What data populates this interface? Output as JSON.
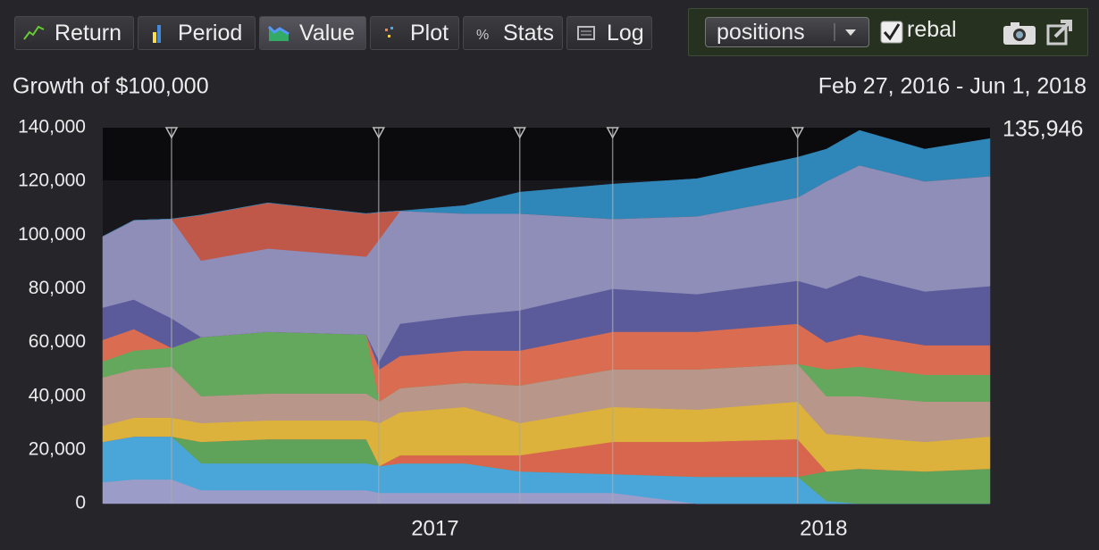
{
  "toolbar": {
    "buttons": [
      "Return",
      "Period",
      "Value",
      "Plot",
      "Stats",
      "Log"
    ],
    "active": 2
  },
  "controls": {
    "select": "positions",
    "checkbox_label": "rebal",
    "checked": true
  },
  "chart_data": {
    "type": "stacked-area",
    "title": "Growth of $100,000",
    "subtitle": "Feb 27, 2016 - Jun 1, 2018",
    "end_label": "135,946",
    "x": [
      2016.145,
      2016.225,
      2016.322,
      2016.398,
      2016.57,
      2016.823,
      2016.857,
      2016.91,
      2017.076,
      2017.218,
      2017.457,
      2017.674,
      2017.933,
      2018.007,
      2018.092,
      2018.26,
      2018.428
    ],
    "xlim": [
      2016.145,
      2018.428
    ],
    "xticks": [
      2017,
      2018
    ],
    "ylim": [
      0,
      140000
    ],
    "yticks": [
      0,
      {
        "value": 20000,
        "label": "20,000"
      },
      {
        "value": 40000,
        "label": "40,000"
      },
      {
        "value": 60000,
        "label": "60,000"
      },
      {
        "value": 80000,
        "label": "80,000"
      },
      {
        "value": 100000,
        "label": "100,000"
      },
      {
        "value": 120000,
        "label": "120,000"
      },
      {
        "value": 140000,
        "label": "140,000"
      }
    ],
    "grid": false,
    "rebalance_x": [
      2016.322,
      2016.855,
      2017.218,
      2017.457,
      2017.933
    ],
    "series": [
      {
        "color": "#9c9cc8",
        "values": [
          8000,
          9000,
          9000,
          5000,
          5000,
          5000,
          4000,
          4000,
          4000,
          4000,
          4000,
          0,
          0,
          0,
          0,
          0,
          0
        ]
      },
      {
        "color": "#4aa6d9",
        "values": [
          15000,
          16000,
          16000,
          10000,
          10000,
          10000,
          10000,
          11000,
          11000,
          8000,
          7000,
          10000,
          10000,
          1000,
          0,
          0,
          0
        ]
      },
      {
        "color": "#5fa35a",
        "values": [
          0,
          0,
          0,
          8000,
          9000,
          9000,
          0,
          0,
          0,
          0,
          0,
          0,
          0,
          11000,
          13000,
          12000,
          13000
        ]
      },
      {
        "color": "#d8654d",
        "values": [
          0,
          0,
          0,
          0,
          0,
          0,
          0,
          3000,
          3000,
          6000,
          12000,
          13000,
          14000,
          0,
          0,
          0,
          0
        ]
      },
      {
        "color": "#dcb23c",
        "values": [
          6000,
          7000,
          7000,
          7000,
          7000,
          7000,
          16000,
          16000,
          18000,
          12000,
          13000,
          12000,
          14000,
          14000,
          12000,
          11000,
          12000
        ]
      },
      {
        "color": "#b8968a",
        "values": [
          18000,
          18000,
          19000,
          10000,
          10000,
          10000,
          8000,
          9000,
          9000,
          14000,
          14000,
          15000,
          14000,
          14000,
          15000,
          15000,
          13000
        ]
      },
      {
        "color": "#63a85c",
        "values": [
          6000,
          7000,
          7000,
          22000,
          23000,
          22000,
          0,
          0,
          0,
          0,
          0,
          0,
          0,
          10000,
          11000,
          10000,
          10000
        ]
      },
      {
        "color": "#d96c51",
        "values": [
          8000,
          8000,
          0,
          0,
          0,
          0,
          12000,
          12000,
          12000,
          13000,
          14000,
          14000,
          15000,
          10000,
          12000,
          11000,
          11000
        ]
      },
      {
        "color": "#5b5b9c",
        "values": [
          12000,
          11000,
          11000,
          0,
          0,
          0,
          3000,
          12000,
          13000,
          15000,
          16000,
          14000,
          16000,
          20000,
          22000,
          20000,
          22000
        ]
      },
      {
        "color": "#8e8eb8",
        "values": [
          26500,
          29500,
          37000,
          28500,
          31000,
          29000,
          45500,
          42000,
          38000,
          36000,
          26000,
          29000,
          31000,
          40000,
          41000,
          41000,
          40946
        ]
      },
      {
        "color": "#c0584a",
        "values": [
          0,
          0,
          0,
          17000,
          17000,
          16000,
          10000,
          0,
          0,
          0,
          0,
          0,
          0,
          0,
          0,
          0,
          0
        ]
      },
      {
        "color": "#2f86b8",
        "values": [
          0,
          0,
          0,
          0,
          0,
          0,
          0,
          0,
          3000,
          8000,
          13000,
          14000,
          15000,
          12000,
          13000,
          12000,
          14000
        ]
      }
    ]
  }
}
